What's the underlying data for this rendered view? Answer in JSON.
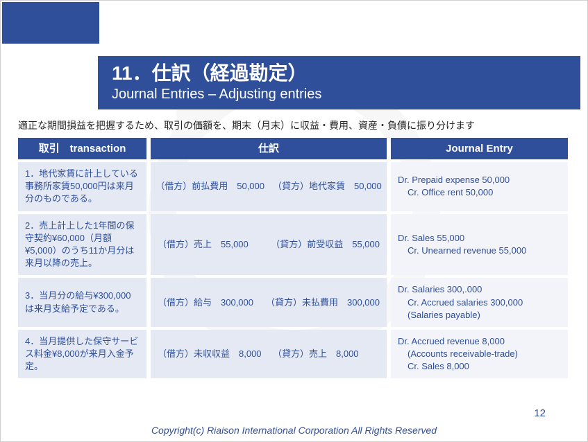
{
  "colors": {
    "brand_blue": "#2f4f9b",
    "cell_light": "#e4e9f3",
    "cell_pale": "#f2f4f9",
    "text_blue": "#2f4f9b",
    "background": "#ffffff",
    "watermark": "#f1f1f1"
  },
  "title": {
    "main": "11．仕訳（経過勘定）",
    "sub": "Journal Entries – Adjusting entries"
  },
  "intro": "適正な期間損益を把握するため、取引の価額を、期末（月末）に収益・費用、資産・負債に振り分けます",
  "headers": {
    "transaction": "取引　transaction",
    "journal_jp": "仕訳",
    "journal_en": "Journal Entry"
  },
  "rows": [
    {
      "transaction": "1．地代家賃に計上している事務所家賃50,000円は来月分のものである。",
      "jp_dr": "（借方）前払費用　50,000",
      "jp_cr": "（貸方）地代家賃　50,000",
      "en_lines": [
        "Dr. Prepaid expense  50,000",
        "  Cr. Office rent    50,000"
      ]
    },
    {
      "transaction": "2．売上計上した1年間の保守契約¥60,000（月額¥5,000）のうち11か月分は来月以降の売上。",
      "jp_dr": "（借方）売上　55,000",
      "jp_cr": "（貸方）前受収益　55,000",
      "en_lines": [
        "Dr. Sales  55,000",
        "  Cr. Unearned revenue    55,000"
      ]
    },
    {
      "transaction": "3．当月分の給与¥300,000は来月支給予定である。",
      "jp_dr": "（借方）給与　300,000",
      "jp_cr": "（貸方）未払費用　300,000",
      "en_lines": [
        "Dr. Salaries    300,.000",
        "  Cr.  Accrued salaries     300,000",
        "            (Salaries payable)"
      ]
    },
    {
      "transaction": "4．当月提供した保守サービス料金¥8,000が来月入金予定。",
      "jp_dr": "（借方）未収収益　8,000",
      "jp_cr": "（貸方）売上　8,000",
      "en_lines": [
        "Dr. Accrued revenue    8,000",
        "        (Accounts receivable-trade)",
        "  Cr. Sales  8,000"
      ]
    }
  ],
  "page_number": "12",
  "copyright": "Copyright(c) Riaison International Corporation All Rights Reserved"
}
